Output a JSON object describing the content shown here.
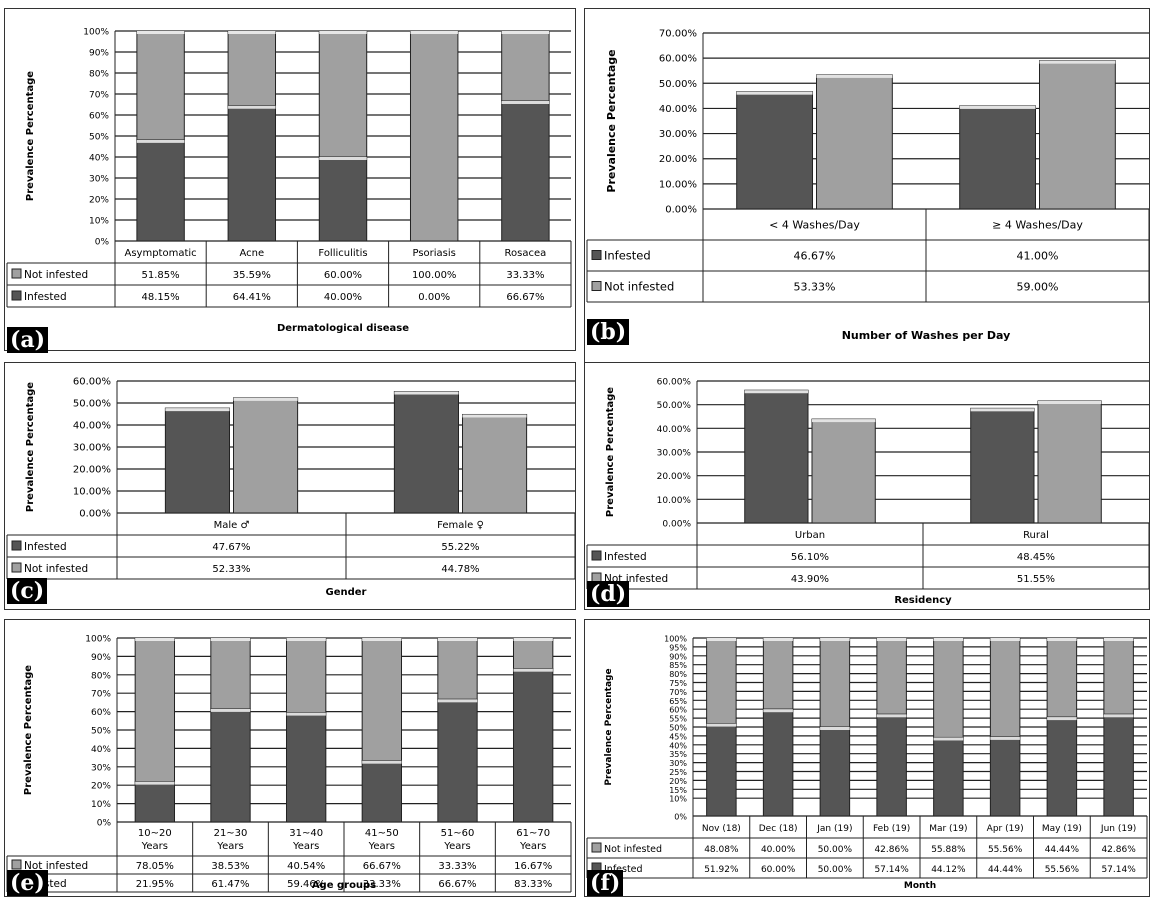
{
  "chart_data": [
    {
      "panel": "(a)",
      "type": "bar",
      "stacked": true,
      "normalized": true,
      "ylabel": "Prevalence Percentage",
      "xlabel": "Dermatological disease",
      "y_ticks": [
        "0%",
        "10%",
        "20%",
        "30%",
        "40%",
        "50%",
        "60%",
        "70%",
        "80%",
        "90%",
        "100%"
      ],
      "ylim": [
        0,
        100
      ],
      "grid": true,
      "categories": [
        "Asymptomatic",
        "Acne",
        "Folliculitis",
        "Psoriasis",
        "Rosacea"
      ],
      "series": [
        {
          "name": "Not infested",
          "values": [
            51.85,
            35.59,
            60.0,
            100.0,
            33.33
          ],
          "labels": [
            "51.85%",
            "35.59%",
            "60.00%",
            "100.00%",
            "33.33%"
          ],
          "color": "#a0a0a0"
        },
        {
          "name": "Infested",
          "values": [
            48.15,
            64.41,
            40.0,
            0.0,
            66.67
          ],
          "labels": [
            "48.15%",
            "64.41%",
            "40.00%",
            "0.00%",
            "66.67%"
          ],
          "color": "#555555"
        }
      ]
    },
    {
      "panel": "(b)",
      "type": "bar",
      "stacked": false,
      "ylabel": "Prevalence Percentage",
      "xlabel": "Number of Washes per Day",
      "y_ticks": [
        "0.00%",
        "10.00%",
        "20.00%",
        "30.00%",
        "40.00%",
        "50.00%",
        "60.00%",
        "70.00%"
      ],
      "ylim": [
        0,
        70
      ],
      "grid": true,
      "categories": [
        "< 4 Washes/Day",
        "≥ 4 Washes/Day"
      ],
      "series": [
        {
          "name": "Infested",
          "values": [
            46.67,
            41.0
          ],
          "labels": [
            "46.67%",
            "41.00%"
          ],
          "color": "#555555"
        },
        {
          "name": "Not infested",
          "values": [
            53.33,
            59.0
          ],
          "labels": [
            "53.33%",
            "59.00%"
          ],
          "color": "#a0a0a0"
        }
      ]
    },
    {
      "panel": "(c)",
      "type": "bar",
      "stacked": false,
      "ylabel": "Prevalence Percentage",
      "xlabel": "Gender",
      "y_ticks": [
        "0.00%",
        "10.00%",
        "20.00%",
        "30.00%",
        "40.00%",
        "50.00%",
        "60.00%"
      ],
      "ylim": [
        0,
        60
      ],
      "grid": true,
      "categories": [
        "Male ♂",
        "Female ♀"
      ],
      "series": [
        {
          "name": "Infested",
          "values": [
            47.67,
            55.22
          ],
          "labels": [
            "47.67%",
            "55.22%"
          ],
          "color": "#555555"
        },
        {
          "name": "Not infested",
          "values": [
            52.33,
            44.78
          ],
          "labels": [
            "52.33%",
            "44.78%"
          ],
          "color": "#a0a0a0"
        }
      ]
    },
    {
      "panel": "(d)",
      "type": "bar",
      "stacked": false,
      "ylabel": "Prevalence Percentage",
      "xlabel": "Residency",
      "y_ticks": [
        "0.00%",
        "10.00%",
        "20.00%",
        "30.00%",
        "40.00%",
        "50.00%",
        "60.00%"
      ],
      "ylim": [
        0,
        60
      ],
      "grid": true,
      "categories": [
        "Urban",
        "Rural"
      ],
      "series": [
        {
          "name": "Infested",
          "values": [
            56.1,
            48.45
          ],
          "labels": [
            "56.10%",
            "48.45%"
          ],
          "color": "#555555"
        },
        {
          "name": "Not infested",
          "values": [
            43.9,
            51.55
          ],
          "labels": [
            "43.90%",
            "51.55%"
          ],
          "color": "#a0a0a0"
        }
      ]
    },
    {
      "panel": "(e)",
      "type": "bar",
      "stacked": true,
      "normalized": true,
      "ylabel": "Prevalence Percentage",
      "xlabel": "Age groups",
      "y_ticks": [
        "0%",
        "10%",
        "20%",
        "30%",
        "40%",
        "50%",
        "60%",
        "70%",
        "80%",
        "90%",
        "100%"
      ],
      "ylim": [
        0,
        100
      ],
      "grid": true,
      "categories": [
        "10~20 Years",
        "21~30 Years",
        "31~40 Years",
        "41~50 Years",
        "51~60 Years",
        "61~70 Years"
      ],
      "series": [
        {
          "name": "Not infested",
          "values": [
            78.05,
            38.53,
            40.54,
            66.67,
            33.33,
            16.67
          ],
          "labels": [
            "78.05%",
            "38.53%",
            "40.54%",
            "66.67%",
            "33.33%",
            "16.67%"
          ],
          "color": "#a0a0a0"
        },
        {
          "name": "Infested",
          "values": [
            21.95,
            61.47,
            59.46,
            33.33,
            66.67,
            83.33
          ],
          "labels": [
            "21.95%",
            "61.47%",
            "59.46%",
            "33.33%",
            "66.67%",
            "83.33%"
          ],
          "color": "#555555"
        }
      ]
    },
    {
      "panel": "(f)",
      "type": "bar",
      "stacked": true,
      "normalized": true,
      "ylabel": "Prevalence Percentage",
      "xlabel": "Month",
      "y_ticks": [
        "0%",
        "10%",
        "15%",
        "20%",
        "25%",
        "30%",
        "35%",
        "40%",
        "45%",
        "50%",
        "55%",
        "60%",
        "65%",
        "70%",
        "75%",
        "80%",
        "85%",
        "90%",
        "95%",
        "100%"
      ],
      "ylim": [
        0,
        100
      ],
      "grid": true,
      "categories": [
        "Nov (18)",
        "Dec (18)",
        "Jan (19)",
        "Feb (19)",
        "Mar (19)",
        "Apr (19)",
        "May (19)",
        "Jun (19)"
      ],
      "series": [
        {
          "name": "Not infested",
          "values": [
            48.08,
            40.0,
            50.0,
            42.86,
            55.88,
            55.56,
            44.44,
            42.86
          ],
          "labels": [
            "48.08%",
            "40.00%",
            "50.00%",
            "42.86%",
            "55.88%",
            "55.56%",
            "44.44%",
            "42.86%"
          ],
          "color": "#a0a0a0"
        },
        {
          "name": "Infested",
          "values": [
            51.92,
            60.0,
            50.0,
            57.14,
            44.12,
            44.44,
            55.56,
            57.14
          ],
          "labels": [
            "51.92%",
            "60.00%",
            "50.00%",
            "57.14%",
            "44.12%",
            "44.44%",
            "55.56%",
            "57.14%"
          ],
          "color": "#555555"
        }
      ]
    }
  ]
}
